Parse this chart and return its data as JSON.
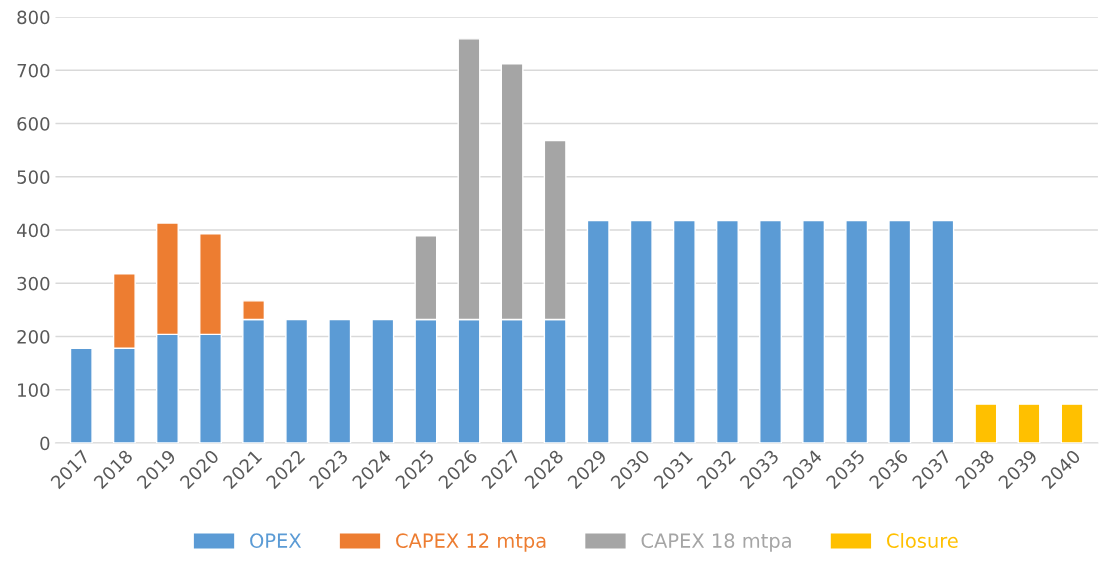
{
  "chart_data": {
    "type": "bar",
    "stacked": true,
    "categories": [
      "2017",
      "2018",
      "2019",
      "2020",
      "2021",
      "2022",
      "2023",
      "2024",
      "2025",
      "2026",
      "2027",
      "2028",
      "2029",
      "2030",
      "2031",
      "2032",
      "2033",
      "2034",
      "2035",
      "2036",
      "2037",
      "2038",
      "2039",
      "2040"
    ],
    "series": [
      {
        "name": "OPEX",
        "color": "#5b9bd5",
        "values": [
          178,
          178,
          204,
          204,
          232,
          232,
          232,
          232,
          232,
          232,
          232,
          232,
          418,
          418,
          418,
          418,
          418,
          418,
          418,
          418,
          418,
          null,
          null,
          null
        ]
      },
      {
        "name": "CAPEX 12 mtpa",
        "color": "#ed7d31",
        "values": [
          null,
          140,
          209,
          189,
          35,
          null,
          null,
          null,
          null,
          null,
          null,
          null,
          null,
          null,
          null,
          null,
          null,
          null,
          null,
          null,
          null,
          null,
          null,
          null
        ]
      },
      {
        "name": "CAPEX 18 mtpa",
        "color": "#a5a5a5",
        "values": [
          null,
          null,
          null,
          null,
          null,
          null,
          null,
          null,
          157,
          527,
          480,
          336,
          null,
          null,
          null,
          null,
          null,
          null,
          null,
          null,
          null,
          null,
          null,
          null
        ]
      },
      {
        "name": "Closure",
        "color": "#ffc000",
        "values": [
          null,
          null,
          null,
          null,
          null,
          null,
          null,
          null,
          null,
          null,
          null,
          null,
          null,
          null,
          null,
          null,
          null,
          null,
          null,
          null,
          null,
          73,
          73,
          73
        ]
      }
    ],
    "ylim": [
      0,
      800
    ],
    "yticks": [
      0,
      100,
      200,
      300,
      400,
      500,
      600,
      700,
      800
    ],
    "grid": "y",
    "legend": "bottom"
  }
}
